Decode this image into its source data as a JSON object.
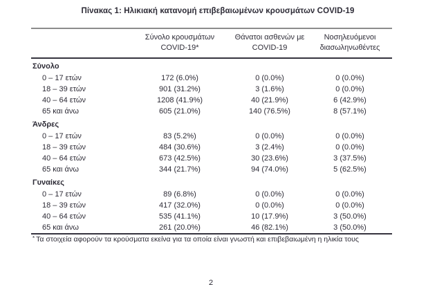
{
  "page": {
    "title": "Πίνακας 1: Ηλικιακή κατανομή επιβεβαιωμένων κρουσμάτων COVID-19",
    "page_number": "2"
  },
  "footnote": {
    "marker": "*",
    "text": "Τα στοιχεία αφορούν τα κρούσματα εκείνα για τα οποία είναι γνωστή και επιβεβαιωμένη η ηλικία τους"
  },
  "table": {
    "headers": [
      {
        "line1": "Σύνολο κρουσμάτων",
        "line2": "COVID-19*"
      },
      {
        "line1": "Θάνατοι ασθενών με",
        "line2": "COVID-19"
      },
      {
        "line1": "Νοσηλευόμενοι",
        "line2": "διασωληνωθέντες"
      }
    ],
    "sections": [
      {
        "name": "Σύνολο",
        "rows": [
          {
            "label": "0 – 17 ετών",
            "cases": "172 (6.0%)",
            "deaths": "0 (0.0%)",
            "intubated": "0 (0.0%)"
          },
          {
            "label": "18 – 39 ετών",
            "cases": "901 (31.2%)",
            "deaths": "3 (1.6%)",
            "intubated": "0 (0.0%)"
          },
          {
            "label": "40 – 64 ετών",
            "cases": "1208 (41.9%)",
            "deaths": "40 (21.9%)",
            "intubated": "6 (42.9%)"
          },
          {
            "label": "65 και άνω",
            "cases": "605 (21.0%)",
            "deaths": "140 (76.5%)",
            "intubated": "8 (57.1%)"
          }
        ]
      },
      {
        "name": "Άνδρες",
        "rows": [
          {
            "label": "0 – 17 ετών",
            "cases": "83 (5.2%)",
            "deaths": "0 (0.0%)",
            "intubated": "0 (0.0%)"
          },
          {
            "label": "18 – 39 ετών",
            "cases": "484 (30.6%)",
            "deaths": "3 (2.4%)",
            "intubated": "0 (0.0%)"
          },
          {
            "label": "40 – 64 ετών",
            "cases": "673 (42.5%)",
            "deaths": "30 (23.6%)",
            "intubated": "3 (37.5%)"
          },
          {
            "label": "65 και άνω",
            "cases": "344 (21.7%)",
            "deaths": "94 (74.0%)",
            "intubated": "5 (62.5%)"
          }
        ]
      },
      {
        "name": "Γυναίκες",
        "rows": [
          {
            "label": "0 – 17 ετών",
            "cases": "89 (6.8%)",
            "deaths": "0 (0.0%)",
            "intubated": "0 (0.0%)"
          },
          {
            "label": "18 – 39 ετών",
            "cases": "417 (32.0%)",
            "deaths": "0 (0.0%)",
            "intubated": "0 (0.0%)"
          },
          {
            "label": "40 – 64 ετών",
            "cases": "535 (41.1%)",
            "deaths": "10 (17.9%)",
            "intubated": "3 (50.0%)"
          },
          {
            "label": "65 και άνω",
            "cases": "261 (20.0%)",
            "deaths": "46 (82.1%)",
            "intubated": "3 (50.0%)"
          }
        ]
      }
    ]
  }
}
